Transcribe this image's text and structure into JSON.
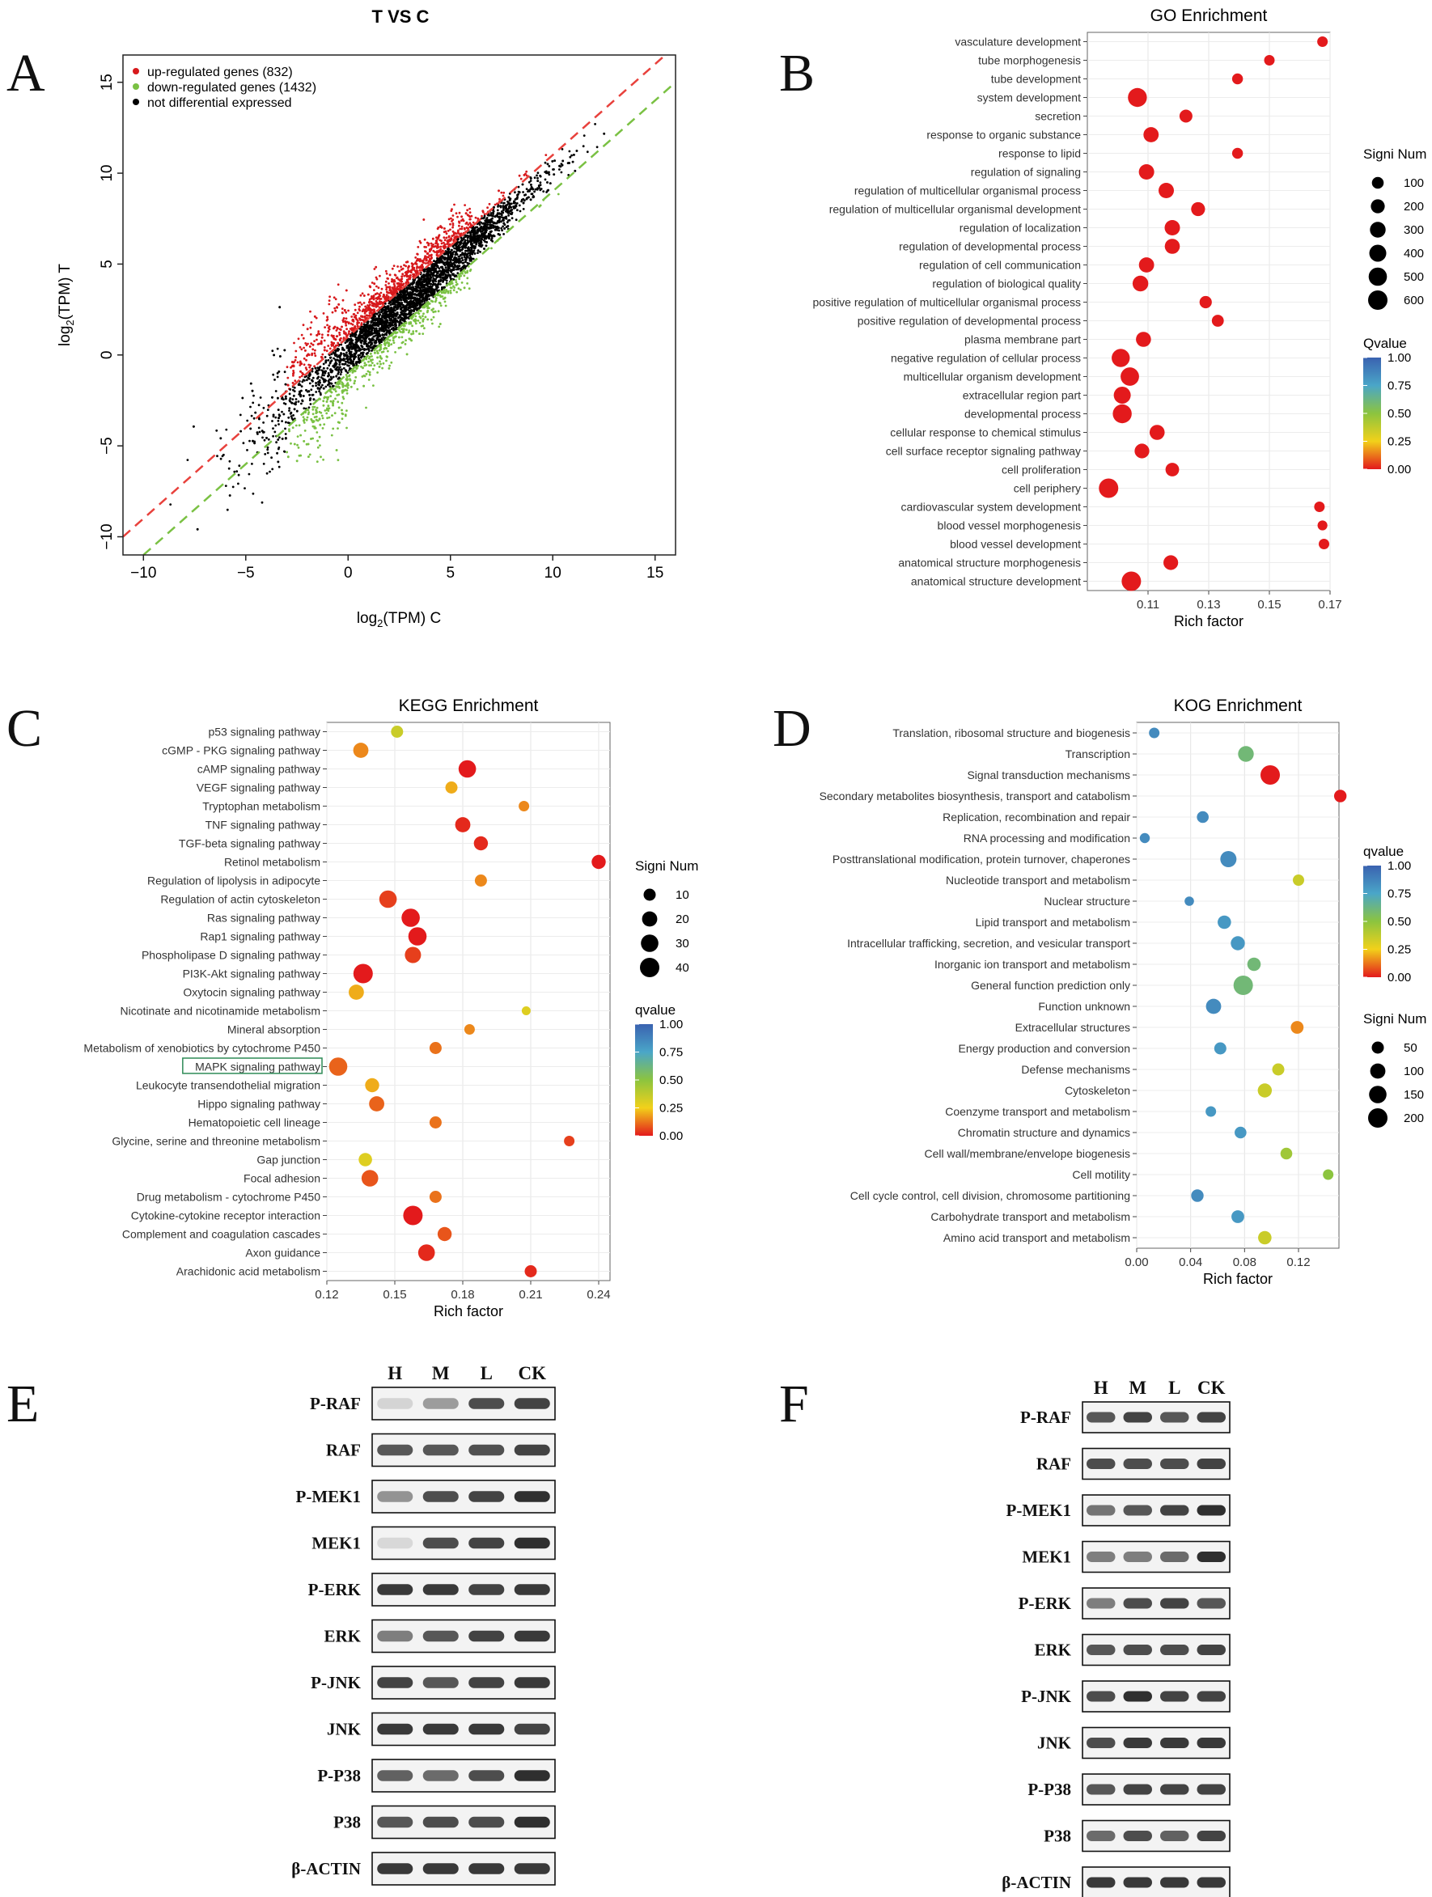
{
  "figure": {
    "panel_letters": [
      "A",
      "B",
      "C",
      "D",
      "E",
      "F"
    ]
  },
  "chart_data": [
    {
      "id": "A",
      "type": "scatter",
      "title": "T VS C",
      "xlabel": "log2(TPM) C",
      "ylabel": "log2(TPM) T",
      "xlim": [
        -11,
        16
      ],
      "ylim": [
        -11,
        16.5
      ],
      "xticks": [
        -10,
        -5,
        0,
        5,
        10,
        15
      ],
      "yticks": [
        -10,
        -5,
        0,
        5,
        10,
        15
      ],
      "legend": [
        {
          "label": "up-regulated genes (832)",
          "color": "#d7191c"
        },
        {
          "label": "down-regulated genes (1432)",
          "color": "#7ac143"
        },
        {
          "label": "not differential expressed",
          "color": "#000000"
        }
      ],
      "reference_lines": [
        {
          "name": "up-threshold",
          "intercept": 1,
          "slope": 1,
          "color": "#e8413c"
        },
        {
          "name": "down-threshold",
          "intercept": -1,
          "slope": 1,
          "color": "#7ac143"
        }
      ],
      "series_summary": {
        "up": 832,
        "down": 1432
      }
    },
    {
      "id": "B",
      "type": "scatter",
      "title": "GO Enrichment",
      "xlabel": "Rich factor",
      "xlim": [
        0.09,
        0.17
      ],
      "xticks": [
        0.11,
        0.13,
        0.15,
        0.17
      ],
      "size_legend_title": "Signi Num",
      "size_legend": [
        100,
        200,
        300,
        400,
        500,
        600
      ],
      "color_legend_title": "Qvalue",
      "color_ticks": [
        "1.00",
        "0.75",
        "0.50",
        "0.25",
        "0.00"
      ],
      "points": [
        {
          "term": "vasculature development",
          "x": 0.1675,
          "size": 60,
          "q": 0.0
        },
        {
          "term": "tube morphogenesis",
          "x": 0.15,
          "size": 60,
          "q": 0.0
        },
        {
          "term": "tube development",
          "x": 0.1395,
          "size": 70,
          "q": 0.0
        },
        {
          "term": "system development",
          "x": 0.1065,
          "size": 560,
          "q": 0.0
        },
        {
          "term": "secretion",
          "x": 0.1225,
          "size": 150,
          "q": 0.0
        },
        {
          "term": "response to organic substance",
          "x": 0.111,
          "size": 270,
          "q": 0.0
        },
        {
          "term": "response to lipid",
          "x": 0.1395,
          "size": 70,
          "q": 0.0
        },
        {
          "term": "regulation of signaling",
          "x": 0.1095,
          "size": 280,
          "q": 0.0
        },
        {
          "term": "regulation of multicellular organismal process",
          "x": 0.116,
          "size": 280,
          "q": 0.0
        },
        {
          "term": "regulation of multicellular organismal development",
          "x": 0.1265,
          "size": 200,
          "q": 0.0
        },
        {
          "term": "regulation of localization",
          "x": 0.118,
          "size": 280,
          "q": 0.0
        },
        {
          "term": "regulation of developmental process",
          "x": 0.118,
          "size": 260,
          "q": 0.0
        },
        {
          "term": "regulation of cell communication",
          "x": 0.1095,
          "size": 270,
          "q": 0.0
        },
        {
          "term": "regulation of biological quality",
          "x": 0.1075,
          "size": 300,
          "q": 0.0
        },
        {
          "term": "positive regulation of multicellular organismal process",
          "x": 0.129,
          "size": 120,
          "q": 0.0
        },
        {
          "term": "positive regulation of developmental process",
          "x": 0.133,
          "size": 110,
          "q": 0.0
        },
        {
          "term": "plasma membrane part",
          "x": 0.1085,
          "size": 260,
          "q": 0.0
        },
        {
          "term": "negative regulation of cellular process",
          "x": 0.101,
          "size": 480,
          "q": 0.0
        },
        {
          "term": "multicellular organism development",
          "x": 0.104,
          "size": 520,
          "q": 0.0
        },
        {
          "term": "extracellular region part",
          "x": 0.1015,
          "size": 400,
          "q": 0.0
        },
        {
          "term": "developmental process",
          "x": 0.1015,
          "size": 560,
          "q": 0.0
        },
        {
          "term": "cellular response to chemical stimulus",
          "x": 0.113,
          "size": 260,
          "q": 0.0
        },
        {
          "term": "cell surface receptor signaling pathway",
          "x": 0.108,
          "size": 240,
          "q": 0.0
        },
        {
          "term": "cell proliferation",
          "x": 0.118,
          "size": 180,
          "q": 0.0
        },
        {
          "term": "cell periphery",
          "x": 0.097,
          "size": 600,
          "q": 0.0
        },
        {
          "term": "cardiovascular system development",
          "x": 0.1665,
          "size": 60,
          "q": 0.0
        },
        {
          "term": "blood vessel morphogenesis",
          "x": 0.1675,
          "size": 40,
          "q": 0.0
        },
        {
          "term": "blood vessel development",
          "x": 0.168,
          "size": 60,
          "q": 0.0
        },
        {
          "term": "anatomical structure morphogenesis",
          "x": 0.1175,
          "size": 240,
          "q": 0.0
        },
        {
          "term": "anatomical structure development",
          "x": 0.1045,
          "size": 600,
          "q": 0.0
        }
      ]
    },
    {
      "id": "C",
      "type": "scatter",
      "title": "KEGG Enrichment",
      "xlabel": "Rich factor",
      "xlim": [
        0.12,
        0.245
      ],
      "xticks": [
        "0.12",
        "0.15",
        "0.18",
        "0.21",
        "0.24"
      ],
      "size_legend_title": "Signi Num",
      "size_legend": [
        10,
        20,
        30,
        40
      ],
      "color_legend_title": "qvalue",
      "color_ticks": [
        "1.00",
        "0.75",
        "0.50",
        "0.25",
        "0.00"
      ],
      "highlighted_term": "MAPK signaling pathway",
      "points": [
        {
          "term": "p53 signaling pathway",
          "x": 0.151,
          "size": 10,
          "q": 0.35
        },
        {
          "term": "cGMP - PKG signaling pathway",
          "x": 0.135,
          "size": 20,
          "q": 0.15
        },
        {
          "term": "cAMP signaling pathway",
          "x": 0.182,
          "size": 30,
          "q": 0.0
        },
        {
          "term": "VEGF signaling pathway",
          "x": 0.175,
          "size": 10,
          "q": 0.2
        },
        {
          "term": "Tryptophan metabolism",
          "x": 0.207,
          "size": 6,
          "q": 0.15
        },
        {
          "term": "TNF signaling pathway",
          "x": 0.18,
          "size": 20,
          "q": 0.02
        },
        {
          "term": "TGF-beta signaling pathway",
          "x": 0.188,
          "size": 16,
          "q": 0.02
        },
        {
          "term": "Retinol metabolism",
          "x": 0.24,
          "size": 16,
          "q": 0.0
        },
        {
          "term": "Regulation of lipolysis in adipocyte",
          "x": 0.188,
          "size": 10,
          "q": 0.15
        },
        {
          "term": "Regulation of actin cytoskeleton",
          "x": 0.147,
          "size": 30,
          "q": 0.05
        },
        {
          "term": "Ras signaling pathway",
          "x": 0.157,
          "size": 34,
          "q": 0.0
        },
        {
          "term": "Rap1 signaling pathway",
          "x": 0.16,
          "size": 34,
          "q": 0.0
        },
        {
          "term": "Phospholipase D signaling pathway",
          "x": 0.158,
          "size": 24,
          "q": 0.05
        },
        {
          "term": "PI3K-Akt signaling pathway",
          "x": 0.136,
          "size": 40,
          "q": 0.0
        },
        {
          "term": "Oxytocin signaling pathway",
          "x": 0.133,
          "size": 20,
          "q": 0.2
        },
        {
          "term": "Nicotinate and nicotinamide metabolism",
          "x": 0.208,
          "size": 3,
          "q": 0.3
        },
        {
          "term": "Mineral absorption",
          "x": 0.183,
          "size": 6,
          "q": 0.15
        },
        {
          "term": "Metabolism of xenobiotics by cytochrome P450",
          "x": 0.168,
          "size": 10,
          "q": 0.12
        },
        {
          "term": "MAPK signaling pathway",
          "x": 0.125,
          "size": 34,
          "q": 0.1
        },
        {
          "term": "Leukocyte transendothelial migration",
          "x": 0.14,
          "size": 16,
          "q": 0.2
        },
        {
          "term": "Hippo signaling pathway",
          "x": 0.142,
          "size": 20,
          "q": 0.1
        },
        {
          "term": "Hematopoietic cell lineage",
          "x": 0.168,
          "size": 10,
          "q": 0.12
        },
        {
          "term": "Glycine, serine and threonine metabolism",
          "x": 0.227,
          "size": 6,
          "q": 0.05
        },
        {
          "term": "Gap junction",
          "x": 0.137,
          "size": 14,
          "q": 0.3
        },
        {
          "term": "Focal adhesion",
          "x": 0.139,
          "size": 26,
          "q": 0.08
        },
        {
          "term": "Drug metabolism - cytochrome P450",
          "x": 0.168,
          "size": 10,
          "q": 0.12
        },
        {
          "term": "Cytokine-cytokine receptor interaction",
          "x": 0.158,
          "size": 40,
          "q": 0.0
        },
        {
          "term": "Complement and coagulation cascades",
          "x": 0.172,
          "size": 16,
          "q": 0.08
        },
        {
          "term": "Axon guidance",
          "x": 0.164,
          "size": 26,
          "q": 0.02
        },
        {
          "term": "Arachidonic acid metabolism",
          "x": 0.21,
          "size": 10,
          "q": 0.02
        }
      ]
    },
    {
      "id": "D",
      "type": "scatter",
      "title": "KOG Enrichment",
      "xlabel": "Rich factor",
      "xlim": [
        0.0,
        0.15
      ],
      "xticks": [
        "0.00",
        "0.04",
        "0.08",
        "0.12"
      ],
      "size_legend_title": "Signi Num",
      "size_legend": [
        50,
        100,
        150,
        200
      ],
      "color_legend_title": "qvalue",
      "color_ticks": [
        "1.00",
        "0.75",
        "0.50",
        "0.25",
        "0.00"
      ],
      "points": [
        {
          "term": "Translation, ribosomal structure and biogenesis",
          "x": 0.013,
          "size": 30,
          "q": 0.85
        },
        {
          "term": "Transcription",
          "x": 0.081,
          "size": 110,
          "q": 0.6
        },
        {
          "term": "Signal transduction mechanisms",
          "x": 0.099,
          "size": 200,
          "q": 0.0
        },
        {
          "term": "Secondary metabolites biosynthesis, transport and catabolism",
          "x": 0.151,
          "size": 55,
          "q": 0.0
        },
        {
          "term": "Replication, recombination and repair",
          "x": 0.049,
          "size": 45,
          "q": 0.85
        },
        {
          "term": "RNA processing and modification",
          "x": 0.006,
          "size": 25,
          "q": 0.85
        },
        {
          "term": "Posttranslational modification, protein turnover, chaperones",
          "x": 0.068,
          "size": 120,
          "q": 0.85
        },
        {
          "term": "Nucleotide transport and metabolism",
          "x": 0.12,
          "size": 40,
          "q": 0.35
        },
        {
          "term": "Nuclear structure",
          "x": 0.039,
          "size": 20,
          "q": 0.85
        },
        {
          "term": "Lipid transport and metabolism",
          "x": 0.065,
          "size": 70,
          "q": 0.8
        },
        {
          "term": "Intracellular trafficking, secretion, and vesicular transport",
          "x": 0.075,
          "size": 80,
          "q": 0.8
        },
        {
          "term": "Inorganic ion transport and metabolism",
          "x": 0.087,
          "size": 70,
          "q": 0.6
        },
        {
          "term": "General function prediction only",
          "x": 0.079,
          "size": 200,
          "q": 0.6
        },
        {
          "term": "Function unknown",
          "x": 0.057,
          "size": 100,
          "q": 0.85
        },
        {
          "term": "Extracellular structures",
          "x": 0.119,
          "size": 60,
          "q": 0.15
        },
        {
          "term": "Energy production and conversion",
          "x": 0.062,
          "size": 50,
          "q": 0.8
        },
        {
          "term": "Defense mechanisms",
          "x": 0.105,
          "size": 50,
          "q": 0.35
        },
        {
          "term": "Cytoskeleton",
          "x": 0.095,
          "size": 80,
          "q": 0.35
        },
        {
          "term": "Coenzyme transport and metabolism",
          "x": 0.055,
          "size": 30,
          "q": 0.8
        },
        {
          "term": "Chromatin structure and dynamics",
          "x": 0.077,
          "size": 45,
          "q": 0.8
        },
        {
          "term": "Cell wall/membrane/envelope biogenesis",
          "x": 0.111,
          "size": 45,
          "q": 0.45
        },
        {
          "term": "Cell motility",
          "x": 0.142,
          "size": 30,
          "q": 0.5
        },
        {
          "term": "Cell cycle control, cell division, chromosome partitioning",
          "x": 0.045,
          "size": 55,
          "q": 0.85
        },
        {
          "term": "Carbohydrate transport and metabolism",
          "x": 0.075,
          "size": 60,
          "q": 0.8
        },
        {
          "term": "Amino acid transport and metabolism",
          "x": 0.095,
          "size": 70,
          "q": 0.35
        }
      ]
    }
  ],
  "blots": {
    "E": {
      "lanes": [
        "H",
        "M",
        "L",
        "CK"
      ],
      "rows": [
        {
          "label": "P-RAF",
          "intensity": [
            0.12,
            0.4,
            0.8,
            0.85
          ]
        },
        {
          "label": "RAF",
          "intensity": [
            0.75,
            0.75,
            0.78,
            0.85
          ]
        },
        {
          "label": "P-MEK1",
          "intensity": [
            0.45,
            0.8,
            0.85,
            0.95
          ]
        },
        {
          "label": "MEK1",
          "intensity": [
            0.1,
            0.8,
            0.85,
            0.95
          ]
        },
        {
          "label": "P-ERK",
          "intensity": [
            0.9,
            0.9,
            0.85,
            0.9
          ]
        },
        {
          "label": "ERK",
          "intensity": [
            0.55,
            0.75,
            0.85,
            0.9
          ]
        },
        {
          "label": "P-JNK",
          "intensity": [
            0.85,
            0.75,
            0.85,
            0.9
          ]
        },
        {
          "label": "JNK",
          "intensity": [
            0.9,
            0.9,
            0.9,
            0.85
          ]
        },
        {
          "label": "P-P38",
          "intensity": [
            0.7,
            0.65,
            0.8,
            0.95
          ]
        },
        {
          "label": "P38",
          "intensity": [
            0.75,
            0.8,
            0.8,
            0.95
          ]
        },
        {
          "label": "β-ACTIN",
          "intensity": [
            0.9,
            0.9,
            0.9,
            0.9
          ]
        }
      ]
    },
    "F": {
      "lanes": [
        "H",
        "M",
        "L",
        "CK"
      ],
      "rows": [
        {
          "label": "P-RAF",
          "intensity": [
            0.75,
            0.85,
            0.75,
            0.85
          ]
        },
        {
          "label": "RAF",
          "intensity": [
            0.8,
            0.8,
            0.8,
            0.85
          ]
        },
        {
          "label": "P-MEK1",
          "intensity": [
            0.6,
            0.75,
            0.85,
            0.95
          ]
        },
        {
          "label": "MEK1",
          "intensity": [
            0.55,
            0.55,
            0.65,
            0.95
          ]
        },
        {
          "label": "P-ERK",
          "intensity": [
            0.55,
            0.8,
            0.85,
            0.75
          ]
        },
        {
          "label": "ERK",
          "intensity": [
            0.75,
            0.8,
            0.8,
            0.85
          ]
        },
        {
          "label": "P-JNK",
          "intensity": [
            0.8,
            0.95,
            0.85,
            0.85
          ]
        },
        {
          "label": "JNK",
          "intensity": [
            0.8,
            0.9,
            0.9,
            0.9
          ]
        },
        {
          "label": "P-P38",
          "intensity": [
            0.75,
            0.85,
            0.85,
            0.85
          ]
        },
        {
          "label": "P38",
          "intensity": [
            0.65,
            0.8,
            0.7,
            0.85
          ]
        },
        {
          "label": "β-ACTIN",
          "intensity": [
            0.9,
            0.9,
            0.9,
            0.9
          ]
        }
      ]
    }
  }
}
